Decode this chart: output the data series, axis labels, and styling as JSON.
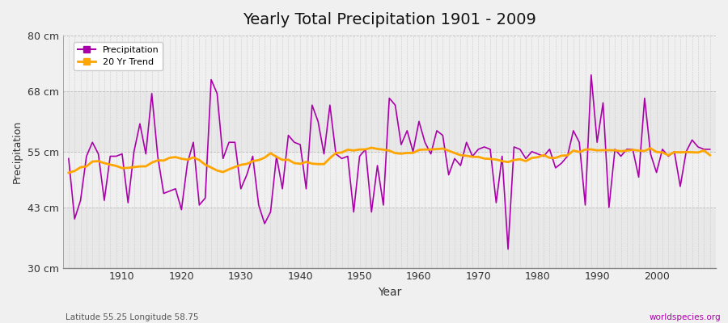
{
  "title": "Yearly Total Precipitation 1901 - 2009",
  "xlabel": "Year",
  "ylabel": "Precipitation",
  "subtitle_left": "Latitude 55.25 Longitude 58.75",
  "subtitle_right": "worldspecies.org",
  "ylim": [
    30,
    80
  ],
  "yticks": [
    30,
    43,
    55,
    68,
    80
  ],
  "ytick_labels": [
    "30 cm",
    "43 cm",
    "55 cm",
    "68 cm",
    "80 cm"
  ],
  "years": [
    1901,
    1902,
    1903,
    1904,
    1905,
    1906,
    1907,
    1908,
    1909,
    1910,
    1911,
    1912,
    1913,
    1914,
    1915,
    1916,
    1917,
    1918,
    1919,
    1920,
    1921,
    1922,
    1923,
    1924,
    1925,
    1926,
    1927,
    1928,
    1929,
    1930,
    1931,
    1932,
    1933,
    1934,
    1935,
    1936,
    1937,
    1938,
    1939,
    1940,
    1941,
    1942,
    1943,
    1944,
    1945,
    1946,
    1947,
    1948,
    1949,
    1950,
    1951,
    1952,
    1953,
    1954,
    1955,
    1956,
    1957,
    1958,
    1959,
    1960,
    1961,
    1962,
    1963,
    1964,
    1965,
    1966,
    1967,
    1968,
    1969,
    1970,
    1971,
    1972,
    1973,
    1974,
    1975,
    1976,
    1977,
    1978,
    1979,
    1980,
    1981,
    1982,
    1983,
    1984,
    1985,
    1986,
    1987,
    1988,
    1989,
    1990,
    1991,
    1992,
    1993,
    1994,
    1995,
    1996,
    1997,
    1998,
    1999,
    2000,
    2001,
    2002,
    2003,
    2004,
    2005,
    2006,
    2007,
    2008,
    2009
  ],
  "precip": [
    53.5,
    40.5,
    44.5,
    54.0,
    57.0,
    54.5,
    44.5,
    54.0,
    54.0,
    54.5,
    44.0,
    55.0,
    61.0,
    54.5,
    67.5,
    54.0,
    46.0,
    46.5,
    47.0,
    42.5,
    52.5,
    57.0,
    43.5,
    45.0,
    70.5,
    67.5,
    53.5,
    57.0,
    57.0,
    47.0,
    50.0,
    54.0,
    43.5,
    39.5,
    42.0,
    54.0,
    47.0,
    58.5,
    57.0,
    56.5,
    47.0,
    65.0,
    61.5,
    54.5,
    65.0,
    54.5,
    53.5,
    54.0,
    42.0,
    54.0,
    55.5,
    42.0,
    52.0,
    43.5,
    66.5,
    65.0,
    56.5,
    59.5,
    55.0,
    61.5,
    57.0,
    54.5,
    59.5,
    58.5,
    50.0,
    53.5,
    52.0,
    57.0,
    54.0,
    55.5,
    56.0,
    55.5,
    44.0,
    54.0,
    34.0,
    56.0,
    55.5,
    53.5,
    55.0,
    54.5,
    54.0,
    55.5,
    51.5,
    52.5,
    54.0,
    59.5,
    57.0,
    43.5,
    71.5,
    57.0,
    65.5,
    43.0,
    55.5,
    54.0,
    55.5,
    55.5,
    49.5,
    66.5,
    54.5,
    50.5,
    55.5,
    54.0,
    55.0,
    47.5,
    55.0,
    57.5,
    56.0,
    55.5,
    55.5
  ],
  "precip_color": "#aa00aa",
  "trend_color": "#ffa500",
  "fig_bg_color": "#f0f0f0",
  "plot_bg_color": "#f5f5f5",
  "band_color_light": "#eeeeee",
  "band_color_dark": "#e0e0e0",
  "grid_color": "#cccccc",
  "trend_window": 20,
  "legend_labels": [
    "Precipitation",
    "20 Yr Trend"
  ]
}
